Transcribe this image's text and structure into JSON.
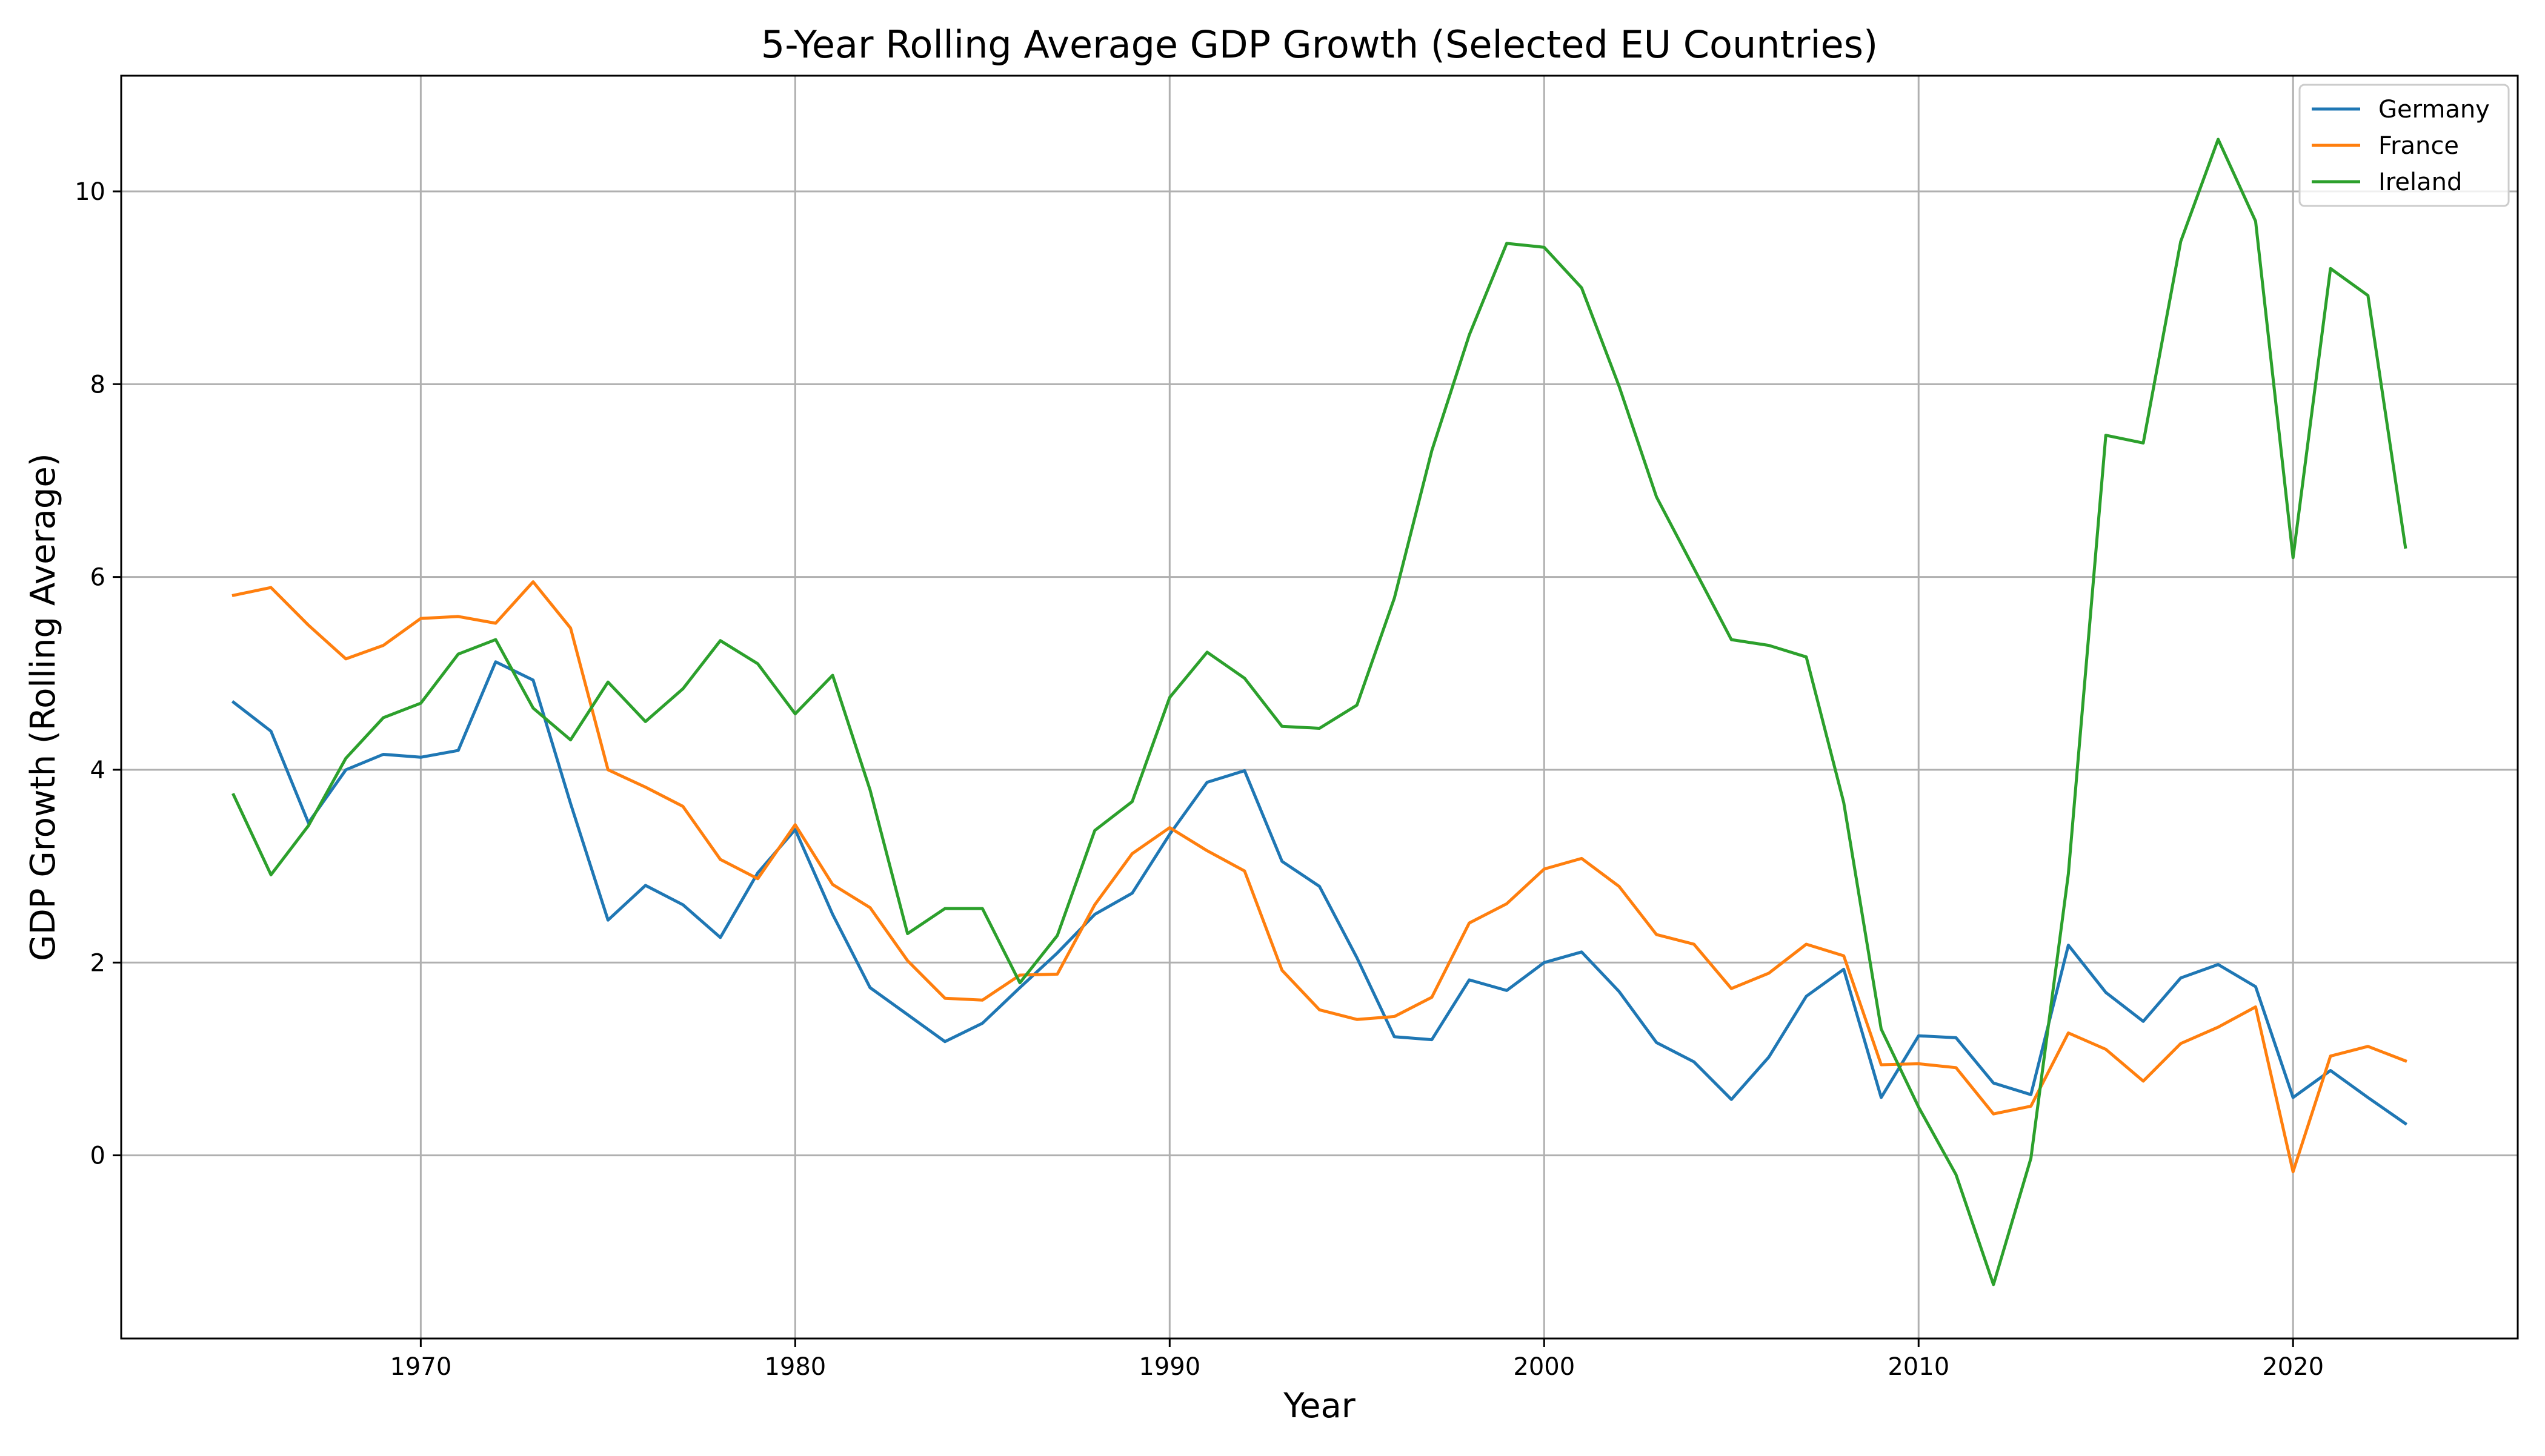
{
  "chart_data": {
    "type": "line",
    "title": "5-Year Rolling Average GDP Growth (Selected EU Countries)",
    "xlabel": "Year",
    "ylabel": "GDP Growth (Rolling Average)",
    "xlim": [
      1962,
      2026
    ],
    "ylim": [
      -1.9,
      11.2
    ],
    "xticks": [
      1970,
      1980,
      1990,
      2000,
      2010,
      2020
    ],
    "yticks": [
      0,
      2,
      4,
      6,
      8,
      10
    ],
    "grid": true,
    "legend_position": "top-right",
    "x": [
      1965,
      1966,
      1967,
      1968,
      1969,
      1970,
      1971,
      1972,
      1973,
      1974,
      1975,
      1976,
      1977,
      1978,
      1979,
      1980,
      1981,
      1982,
      1983,
      1984,
      1985,
      1986,
      1987,
      1988,
      1989,
      1990,
      1991,
      1992,
      1993,
      1994,
      1995,
      1996,
      1997,
      1998,
      1999,
      2000,
      2001,
      2002,
      2003,
      2004,
      2005,
      2006,
      2007,
      2008,
      2009,
      2010,
      2011,
      2012,
      2013,
      2014,
      2015,
      2016,
      2017,
      2018,
      2019,
      2020,
      2021,
      2022,
      2023
    ],
    "series": [
      {
        "name": "Germany",
        "color": "#1f77b4",
        "values": [
          4.7,
          4.4,
          3.45,
          4.0,
          4.16,
          4.13,
          4.2,
          5.12,
          4.93,
          3.65,
          2.44,
          2.8,
          2.6,
          2.26,
          2.93,
          3.38,
          2.5,
          1.74,
          1.46,
          1.18,
          1.37,
          1.74,
          2.1,
          2.5,
          2.72,
          3.33,
          3.87,
          3.99,
          3.05,
          2.79,
          2.05,
          1.23,
          1.2,
          1.82,
          1.71,
          2.0,
          2.11,
          1.7,
          1.17,
          0.97,
          0.58,
          1.02,
          1.65,
          1.93,
          0.6,
          1.24,
          1.22,
          0.75,
          0.63,
          2.18,
          1.69,
          1.39,
          1.84,
          1.98,
          1.75,
          0.6,
          0.88,
          0.6,
          0.33
        ]
      },
      {
        "name": "France",
        "color": "#ff7f0e",
        "values": [
          5.81,
          5.89,
          5.5,
          5.15,
          5.29,
          5.57,
          5.59,
          5.52,
          5.95,
          5.47,
          4.0,
          3.82,
          3.62,
          3.07,
          2.87,
          3.43,
          2.81,
          2.57,
          2.02,
          1.63,
          1.61,
          1.87,
          1.88,
          2.6,
          3.13,
          3.4,
          3.16,
          2.95,
          1.92,
          1.51,
          1.41,
          1.44,
          1.64,
          2.41,
          2.61,
          2.97,
          3.08,
          2.79,
          2.29,
          2.19,
          1.73,
          1.89,
          2.19,
          2.07,
          0.94,
          0.95,
          0.91,
          0.43,
          0.51,
          1.27,
          1.1,
          0.77,
          1.16,
          1.33,
          1.54,
          -0.17,
          1.03,
          1.13,
          0.98
        ]
      },
      {
        "name": "Ireland",
        "color": "#2ca02c",
        "values": [
          3.74,
          2.91,
          3.42,
          4.12,
          4.54,
          4.69,
          5.2,
          5.35,
          4.64,
          4.31,
          4.91,
          4.5,
          4.84,
          5.34,
          5.1,
          4.58,
          4.98,
          3.79,
          2.3,
          2.56,
          2.56,
          1.79,
          2.28,
          3.37,
          3.67,
          4.75,
          5.22,
          4.95,
          4.45,
          4.43,
          4.67,
          5.78,
          7.31,
          8.51,
          9.46,
          9.42,
          9.0,
          7.98,
          6.83,
          6.09,
          5.35,
          5.29,
          5.17,
          3.66,
          1.31,
          0.5,
          -0.2,
          -1.34,
          -0.03,
          2.92,
          7.47,
          7.39,
          9.48,
          10.54,
          9.69,
          6.2,
          9.2,
          8.92,
          6.31
        ]
      }
    ]
  }
}
